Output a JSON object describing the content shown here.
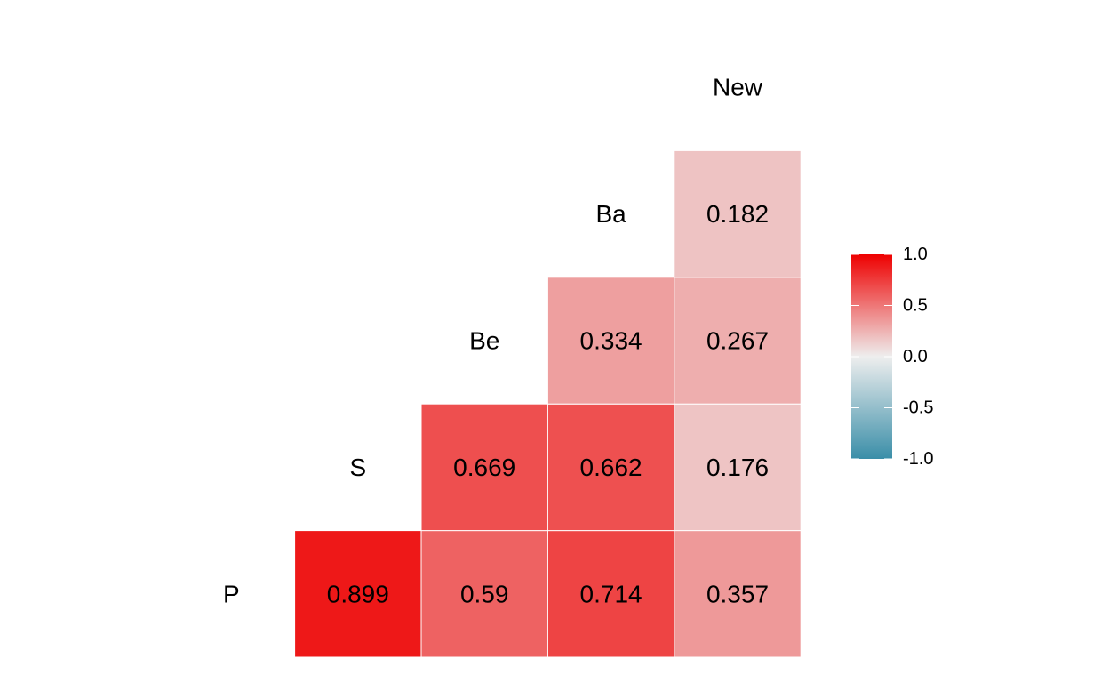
{
  "chart_data": {
    "type": "heatmap",
    "subtype": "correlation-matrix-lower-triangle",
    "variables": [
      "P",
      "S",
      "Be",
      "Ba",
      "New"
    ],
    "cells": [
      {
        "row": "P",
        "col": "S",
        "value": 0.899,
        "label": "0.899"
      },
      {
        "row": "P",
        "col": "Be",
        "value": 0.59,
        "label": "0.59"
      },
      {
        "row": "P",
        "col": "Ba",
        "value": 0.714,
        "label": "0.714"
      },
      {
        "row": "P",
        "col": "New",
        "value": 0.357,
        "label": "0.357"
      },
      {
        "row": "S",
        "col": "Be",
        "value": 0.669,
        "label": "0.669"
      },
      {
        "row": "S",
        "col": "Ba",
        "value": 0.662,
        "label": "0.662"
      },
      {
        "row": "S",
        "col": "New",
        "value": 0.176,
        "label": "0.176"
      },
      {
        "row": "Be",
        "col": "Ba",
        "value": 0.334,
        "label": "0.334"
      },
      {
        "row": "Be",
        "col": "New",
        "value": 0.267,
        "label": "0.267"
      },
      {
        "row": "Ba",
        "col": "New",
        "value": 0.182,
        "label": "0.182"
      }
    ],
    "color_scale": {
      "min": -1.0,
      "max": 1.0,
      "low_color": "#3A8EA8",
      "mid_color": "#EEEEEE",
      "high_color": "#EE0000"
    },
    "legend": {
      "placement": "right",
      "ticks": [
        1.0,
        0.5,
        0.0,
        -0.5,
        -1.0
      ],
      "tick_labels": [
        "1.0",
        "0.5",
        "0.0",
        "-0.5",
        "-1.0"
      ]
    },
    "title": "",
    "xlabel": "",
    "ylabel": ""
  }
}
